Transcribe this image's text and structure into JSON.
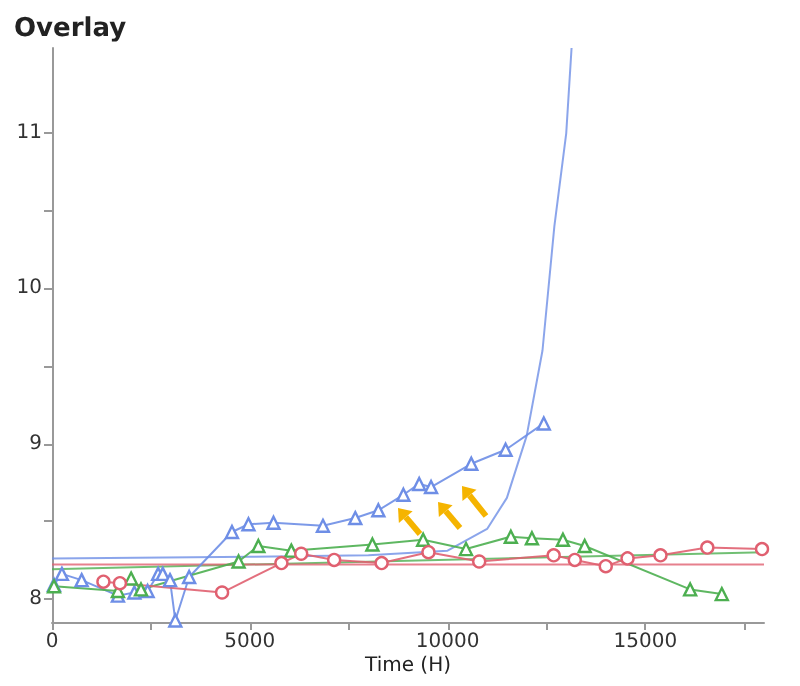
{
  "chart_data": {
    "type": "line",
    "title": "Overlay",
    "xlabel": "Time (H)",
    "xlim": [
      0,
      18000
    ],
    "ylim": [
      7.85,
      11.55
    ],
    "xticks": [
      0,
      {
        "value": 2500,
        "label": null
      },
      5000,
      {
        "value": 7500,
        "label": null
      },
      10000,
      {
        "value": 12500,
        "label": null
      },
      15000,
      {
        "value": 17500,
        "label": null
      }
    ],
    "yticks": [
      8,
      {
        "value": 8.5,
        "label": null
      },
      9,
      {
        "value": 9.5,
        "label": null
      },
      10,
      {
        "value": 10.5,
        "label": null
      },
      11
    ],
    "grid": false,
    "line_style": "solid",
    "series": [
      {
        "color": "#6e8ee6",
        "marker": "triangle",
        "x": [
          50,
          250,
          750,
          1667,
          2083,
          2417,
          2683,
          2800,
          2983,
          3117,
          3467,
          4550,
          4967,
          5600,
          6850,
          7667,
          8250,
          8883,
          9283,
          9583,
          10600,
          11467,
          12433
        ],
        "values": [
          8.09,
          8.16,
          8.12,
          8.02,
          8.04,
          8.05,
          8.16,
          8.16,
          8.12,
          7.86,
          8.14,
          8.43,
          8.48,
          8.49,
          8.47,
          8.52,
          8.57,
          8.67,
          8.74,
          8.72,
          8.87,
          8.96,
          9.13
        ]
      },
      {
        "color": "#4caf50",
        "marker": "triangle",
        "x": [
          50,
          1667,
          2000,
          2250,
          4717,
          5217,
          6050,
          8100,
          9383,
          10467,
          11600,
          12133,
          12917,
          13467,
          16133,
          16933
        ],
        "values": [
          8.08,
          8.05,
          8.13,
          8.06,
          8.24,
          8.34,
          8.31,
          8.35,
          8.38,
          8.32,
          8.4,
          8.39,
          8.38,
          8.34,
          8.06,
          8.03
        ]
      },
      {
        "color": "#e06070",
        "marker": "circle",
        "x": [
          1300,
          1717,
          4300,
          5800,
          6300,
          7133,
          8333,
          9517,
          10800,
          12683,
          13217,
          14000,
          14550,
          15383,
          16567,
          17950
        ],
        "values": [
          8.11,
          8.1,
          8.04,
          8.23,
          8.29,
          8.25,
          8.23,
          8.3,
          8.24,
          8.28,
          8.25,
          8.21,
          8.26,
          8.28,
          8.33,
          8.32
        ]
      },
      {
        "color": "#6e8ee6",
        "marker": "none",
        "x": [
          0,
          5000,
          8000,
          10000,
          11000,
          11500,
          12000,
          12400,
          12700,
          13000,
          13135
        ],
        "values": [
          8.26,
          8.27,
          8.28,
          8.31,
          8.45,
          8.65,
          9.05,
          9.6,
          10.4,
          11.0,
          11.55
        ]
      },
      {
        "color": "#4caf50",
        "marker": "none",
        "x": [
          0,
          18000
        ],
        "values": [
          8.19,
          8.3
        ]
      },
      {
        "color": "#e06070",
        "marker": "none",
        "x": [
          0,
          18000
        ],
        "values": [
          8.22,
          8.22
        ]
      }
    ]
  }
}
